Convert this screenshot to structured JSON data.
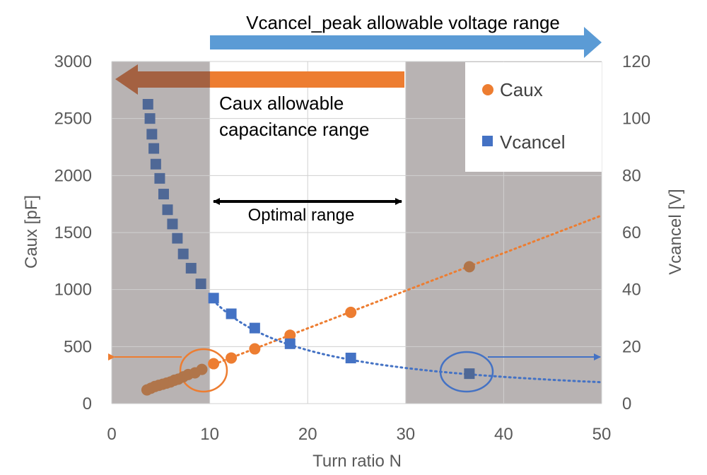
{
  "chart_data": {
    "type": "scatter",
    "xlabel": "Turn ratio N",
    "ylabel_left": "Caux [pF]",
    "ylabel_right": "Vcancel [V]",
    "xlim": [
      0,
      50
    ],
    "ylim_left": [
      0,
      3000
    ],
    "ylim_right": [
      0,
      120
    ],
    "x_ticks": [
      0,
      10,
      20,
      30,
      40,
      50
    ],
    "y_left_ticks": [
      0,
      500,
      1000,
      1500,
      2000,
      2500,
      3000
    ],
    "y_right_ticks": [
      0,
      20,
      40,
      60,
      80,
      100,
      120
    ],
    "grid": true,
    "legend_position": "top-right",
    "shaded_regions": [
      [
        0,
        10
      ],
      [
        30,
        50
      ]
    ],
    "series": [
      {
        "name": "Caux",
        "axis": "left",
        "marker": "circle",
        "color": "#ED7D31",
        "x": [
          3.6,
          4.0,
          4.4,
          4.8,
          5.2,
          5.6,
          6.0,
          6.4,
          6.8,
          7.3,
          7.8,
          8.5,
          9.2,
          10.4,
          12.2,
          14.6,
          18.2,
          24.4,
          36.5
        ],
        "y": [
          120,
          135,
          150,
          160,
          170,
          180,
          190,
          205,
          215,
          235,
          255,
          270,
          300,
          350,
          400,
          480,
          600,
          800,
          1200
        ]
      },
      {
        "name": "Vcancel",
        "axis": "right",
        "marker": "square",
        "color": "#4472C4",
        "x": [
          3.7,
          3.9,
          4.1,
          4.3,
          4.5,
          4.9,
          5.3,
          5.7,
          6.2,
          6.7,
          7.3,
          8.1,
          9.1,
          10.4,
          12.2,
          14.6,
          18.2,
          24.4,
          36.5
        ],
        "y": [
          105,
          100,
          94.5,
          89.5,
          84,
          79,
          73.5,
          68,
          63,
          58,
          52.5,
          47.5,
          42,
          37,
          31.5,
          26.5,
          21,
          16,
          10.5
        ]
      }
    ],
    "trend_caux": {
      "x": [
        10,
        50
      ],
      "y": [
        330,
        1650
      ]
    },
    "trend_vcancel": {
      "x": [
        10,
        50
      ],
      "y": [
        37.5,
        7.5
      ]
    },
    "annotations": {
      "voltage_range": "Vcancel_peak allowable voltage range",
      "caux_range_line1": "Caux allowable",
      "caux_range_line2": "capacitance range",
      "optimal_range": "Optimal range"
    }
  }
}
